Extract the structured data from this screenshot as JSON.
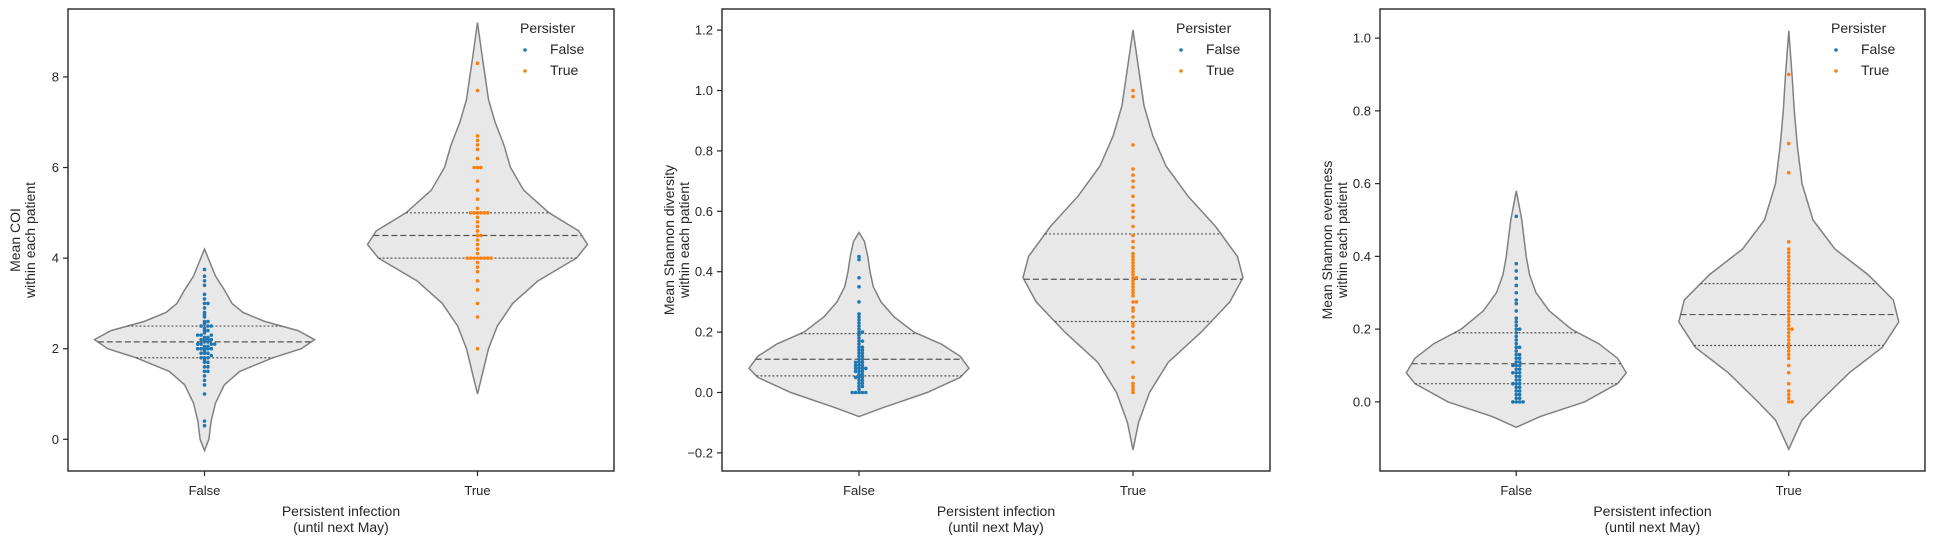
{
  "colors": {
    "false_series": "#1f77b4",
    "true_series": "#ff7f0e",
    "violin_fill": "#e8e8e8",
    "violin_edge": "#808080",
    "quartile_line": "#555555"
  },
  "chart_data": [
    {
      "type": "violin",
      "xlabel_line1": "Persistent infection",
      "xlabel_line2": "(until next May)",
      "ylabel_line1": "Mean COI",
      "ylabel_line2": "within each patient",
      "categories": [
        "False",
        "True"
      ],
      "ylim": [
        -0.7,
        9.5
      ],
      "yticks": [
        0,
        2,
        4,
        6,
        8
      ],
      "ytick_labels": [
        "0",
        "2",
        "4",
        "6",
        "8"
      ],
      "grid": false,
      "legend": {
        "title": "Persister",
        "entries": [
          "False",
          "True"
        ],
        "placement": "top-right"
      },
      "series": [
        {
          "name": "False",
          "quartiles": [
            1.8,
            2.15,
            2.5
          ],
          "range": [
            -0.25,
            4.2
          ],
          "density": [
            [
              -0.25,
              0.0
            ],
            [
              0.0,
              0.04
            ],
            [
              0.4,
              0.06
            ],
            [
              0.8,
              0.1
            ],
            [
              1.2,
              0.18
            ],
            [
              1.5,
              0.32
            ],
            [
              1.8,
              0.62
            ],
            [
              2.0,
              0.88
            ],
            [
              2.2,
              1.0
            ],
            [
              2.4,
              0.85
            ],
            [
              2.6,
              0.55
            ],
            [
              2.8,
              0.35
            ],
            [
              3.0,
              0.25
            ],
            [
              3.3,
              0.18
            ],
            [
              3.6,
              0.1
            ],
            [
              3.9,
              0.05
            ],
            [
              4.2,
              0.0
            ]
          ],
          "values": [
            0.3,
            0.4,
            1.0,
            1.2,
            1.3,
            1.4,
            1.5,
            1.5,
            1.6,
            1.6,
            1.7,
            1.7,
            1.75,
            1.8,
            1.8,
            1.8,
            1.85,
            1.9,
            1.9,
            1.9,
            1.95,
            2.0,
            2.0,
            2.0,
            2.0,
            2.0,
            2.05,
            2.05,
            2.1,
            2.1,
            2.1,
            2.1,
            2.15,
            2.15,
            2.2,
            2.2,
            2.2,
            2.2,
            2.25,
            2.25,
            2.3,
            2.3,
            2.3,
            2.35,
            2.4,
            2.4,
            2.45,
            2.5,
            2.5,
            2.5,
            2.55,
            2.6,
            2.6,
            2.7,
            2.75,
            2.8,
            2.9,
            3.0,
            3.0,
            3.1,
            3.2,
            3.4,
            3.5,
            3.6,
            3.75
          ]
        },
        {
          "name": "True",
          "quartiles": [
            4.0,
            4.5,
            5.0
          ],
          "range": [
            1.0,
            9.2
          ],
          "density": [
            [
              1.0,
              0.0
            ],
            [
              1.5,
              0.05
            ],
            [
              2.0,
              0.1
            ],
            [
              2.5,
              0.18
            ],
            [
              3.0,
              0.32
            ],
            [
              3.5,
              0.55
            ],
            [
              4.0,
              0.9
            ],
            [
              4.3,
              1.0
            ],
            [
              4.6,
              0.92
            ],
            [
              5.0,
              0.65
            ],
            [
              5.5,
              0.42
            ],
            [
              6.0,
              0.3
            ],
            [
              6.5,
              0.24
            ],
            [
              7.0,
              0.16
            ],
            [
              7.5,
              0.1
            ],
            [
              8.0,
              0.07
            ],
            [
              8.5,
              0.04
            ],
            [
              9.2,
              0.0
            ]
          ],
          "values": [
            2.0,
            2.7,
            3.0,
            3.3,
            3.5,
            3.7,
            3.8,
            3.9,
            4.0,
            4.0,
            4.0,
            4.0,
            4.0,
            4.0,
            4.0,
            4.0,
            4.1,
            4.2,
            4.3,
            4.4,
            4.5,
            4.5,
            4.6,
            4.7,
            4.8,
            4.9,
            5.0,
            5.0,
            5.0,
            5.0,
            5.0,
            5.0,
            5.1,
            5.3,
            5.5,
            5.7,
            6.0,
            6.0,
            6.0,
            6.2,
            6.4,
            6.5,
            6.6,
            6.7,
            7.7,
            8.3
          ]
        }
      ]
    },
    {
      "type": "violin",
      "xlabel_line1": "Persistent infection",
      "xlabel_line2": "(until next May)",
      "ylabel_line1": "Mean Shannon diversity",
      "ylabel_line2": "within each patient",
      "categories": [
        "False",
        "True"
      ],
      "ylim": [
        -0.26,
        1.27
      ],
      "yticks": [
        -0.2,
        0.0,
        0.2,
        0.4,
        0.6,
        0.8,
        1.0,
        1.2
      ],
      "ytick_labels": [
        "−0.2",
        "0.0",
        "0.2",
        "0.4",
        "0.6",
        "0.8",
        "1.0",
        "1.2"
      ],
      "grid": false,
      "legend": {
        "title": "Persister",
        "entries": [
          "False",
          "True"
        ],
        "placement": "top-right"
      },
      "series": [
        {
          "name": "False",
          "quartiles": [
            0.055,
            0.11,
            0.195
          ],
          "range": [
            -0.08,
            0.53
          ],
          "density": [
            [
              -0.08,
              0.0
            ],
            [
              -0.05,
              0.22
            ],
            [
              0.0,
              0.62
            ],
            [
              0.05,
              0.92
            ],
            [
              0.08,
              1.0
            ],
            [
              0.12,
              0.92
            ],
            [
              0.16,
              0.75
            ],
            [
              0.2,
              0.5
            ],
            [
              0.25,
              0.32
            ],
            [
              0.3,
              0.2
            ],
            [
              0.35,
              0.13
            ],
            [
              0.4,
              0.1
            ],
            [
              0.45,
              0.08
            ],
            [
              0.5,
              0.05
            ],
            [
              0.53,
              0.0
            ]
          ],
          "values": [
            0.0,
            0.0,
            0.0,
            0.0,
            0.0,
            0.01,
            0.02,
            0.02,
            0.03,
            0.03,
            0.04,
            0.04,
            0.05,
            0.05,
            0.05,
            0.06,
            0.06,
            0.07,
            0.07,
            0.07,
            0.08,
            0.08,
            0.08,
            0.08,
            0.09,
            0.09,
            0.09,
            0.1,
            0.1,
            0.1,
            0.11,
            0.11,
            0.12,
            0.12,
            0.13,
            0.13,
            0.14,
            0.14,
            0.15,
            0.15,
            0.16,
            0.17,
            0.17,
            0.18,
            0.19,
            0.2,
            0.2,
            0.21,
            0.22,
            0.23,
            0.24,
            0.25,
            0.26,
            0.3,
            0.35,
            0.38,
            0.44,
            0.45
          ]
        },
        {
          "name": "True",
          "quartiles": [
            0.235,
            0.375,
            0.525
          ],
          "range": [
            -0.19,
            1.2
          ],
          "density": [
            [
              -0.19,
              0.0
            ],
            [
              -0.1,
              0.05
            ],
            [
              0.0,
              0.15
            ],
            [
              0.1,
              0.32
            ],
            [
              0.2,
              0.62
            ],
            [
              0.3,
              0.88
            ],
            [
              0.38,
              1.0
            ],
            [
              0.45,
              0.95
            ],
            [
              0.55,
              0.75
            ],
            [
              0.65,
              0.5
            ],
            [
              0.75,
              0.3
            ],
            [
              0.85,
              0.18
            ],
            [
              0.95,
              0.1
            ],
            [
              1.05,
              0.06
            ],
            [
              1.2,
              0.0
            ]
          ],
          "values": [
            0.0,
            0.01,
            0.02,
            0.03,
            0.05,
            0.1,
            0.15,
            0.18,
            0.2,
            0.22,
            0.23,
            0.25,
            0.27,
            0.28,
            0.3,
            0.3,
            0.32,
            0.33,
            0.34,
            0.35,
            0.36,
            0.37,
            0.38,
            0.38,
            0.39,
            0.4,
            0.41,
            0.42,
            0.43,
            0.44,
            0.45,
            0.46,
            0.48,
            0.5,
            0.52,
            0.55,
            0.58,
            0.6,
            0.62,
            0.65,
            0.68,
            0.7,
            0.72,
            0.74,
            0.82,
            0.98,
            1.0
          ]
        }
      ]
    },
    {
      "type": "violin",
      "xlabel_line1": "Persistent infection",
      "xlabel_line2": "(until next May)",
      "ylabel_line1": "Mean Shannon evenness",
      "ylabel_line2": "within each patient",
      "categories": [
        "False",
        "True"
      ],
      "ylim": [
        -0.19,
        1.08
      ],
      "yticks": [
        0.0,
        0.2,
        0.4,
        0.6,
        0.8,
        1.0
      ],
      "ytick_labels": [
        "0.0",
        "0.2",
        "0.4",
        "0.6",
        "0.8",
        "1.0"
      ],
      "grid": false,
      "legend": {
        "title": "Persister",
        "entries": [
          "False",
          "True"
        ],
        "placement": "top-right"
      },
      "series": [
        {
          "name": "False",
          "quartiles": [
            0.05,
            0.105,
            0.19
          ],
          "range": [
            -0.07,
            0.58
          ],
          "density": [
            [
              -0.07,
              0.0
            ],
            [
              -0.04,
              0.22
            ],
            [
              0.0,
              0.62
            ],
            [
              0.05,
              0.92
            ],
            [
              0.08,
              1.0
            ],
            [
              0.12,
              0.92
            ],
            [
              0.16,
              0.75
            ],
            [
              0.2,
              0.5
            ],
            [
              0.25,
              0.3
            ],
            [
              0.3,
              0.18
            ],
            [
              0.35,
              0.12
            ],
            [
              0.4,
              0.09
            ],
            [
              0.45,
              0.07
            ],
            [
              0.5,
              0.05
            ],
            [
              0.58,
              0.0
            ]
          ],
          "values": [
            0.0,
            0.0,
            0.0,
            0.0,
            0.01,
            0.01,
            0.02,
            0.02,
            0.03,
            0.03,
            0.04,
            0.04,
            0.05,
            0.05,
            0.05,
            0.06,
            0.06,
            0.07,
            0.07,
            0.08,
            0.08,
            0.08,
            0.09,
            0.09,
            0.1,
            0.1,
            0.1,
            0.11,
            0.11,
            0.12,
            0.12,
            0.13,
            0.13,
            0.14,
            0.15,
            0.15,
            0.16,
            0.17,
            0.18,
            0.19,
            0.2,
            0.2,
            0.21,
            0.22,
            0.23,
            0.25,
            0.27,
            0.28,
            0.3,
            0.32,
            0.34,
            0.36,
            0.38,
            0.51
          ]
        },
        {
          "name": "True",
          "quartiles": [
            0.155,
            0.24,
            0.325
          ],
          "range": [
            -0.13,
            1.02
          ],
          "density": [
            [
              -0.13,
              0.0
            ],
            [
              -0.05,
              0.12
            ],
            [
              0.0,
              0.28
            ],
            [
              0.08,
              0.55
            ],
            [
              0.15,
              0.85
            ],
            [
              0.22,
              1.0
            ],
            [
              0.28,
              0.95
            ],
            [
              0.35,
              0.72
            ],
            [
              0.42,
              0.42
            ],
            [
              0.5,
              0.22
            ],
            [
              0.6,
              0.12
            ],
            [
              0.7,
              0.08
            ],
            [
              0.8,
              0.05
            ],
            [
              0.9,
              0.03
            ],
            [
              1.02,
              0.0
            ]
          ],
          "values": [
            0.0,
            0.0,
            0.01,
            0.02,
            0.03,
            0.05,
            0.08,
            0.1,
            0.12,
            0.13,
            0.14,
            0.15,
            0.16,
            0.17,
            0.18,
            0.19,
            0.2,
            0.2,
            0.21,
            0.22,
            0.23,
            0.24,
            0.25,
            0.26,
            0.27,
            0.28,
            0.29,
            0.3,
            0.31,
            0.32,
            0.33,
            0.34,
            0.35,
            0.36,
            0.37,
            0.38,
            0.39,
            0.4,
            0.41,
            0.42,
            0.44,
            0.63,
            0.71,
            0.9
          ]
        }
      ]
    }
  ]
}
